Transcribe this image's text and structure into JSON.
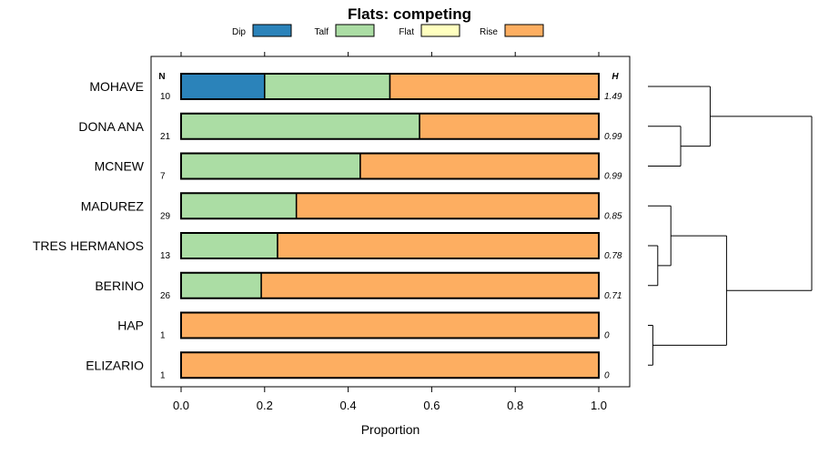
{
  "chart_data": {
    "type": "bar",
    "orientation": "horizontal",
    "stacked": true,
    "title": "Flats: competing",
    "xlabel": "Proportion",
    "ylabel": "",
    "xlim": [
      0,
      1
    ],
    "x_ticks": [
      "0.0",
      "0.2",
      "0.4",
      "0.6",
      "0.8",
      "1.0"
    ],
    "categories": [
      "MOHAVE",
      "DONA ANA",
      "MCNEW",
      "MADUREZ",
      "TRES HERMANOS",
      "BERINO",
      "HAP",
      "ELIZARIO"
    ],
    "n_header": "N",
    "h_header": "H",
    "n_values": [
      "10",
      "21",
      "7",
      "29",
      "13",
      "26",
      "1",
      "1"
    ],
    "h_values": [
      "1.49",
      "0.99",
      "0.99",
      "0.85",
      "0.78",
      "0.71",
      "0",
      "0"
    ],
    "series": [
      {
        "name": "Dip",
        "color": "#2b83ba",
        "values": [
          0.2,
          0,
          0,
          0,
          0,
          0,
          0,
          0
        ]
      },
      {
        "name": "Talf",
        "color": "#abdda4",
        "values": [
          0.3,
          0.571,
          0.429,
          0.276,
          0.231,
          0.192,
          0,
          0
        ]
      },
      {
        "name": "Flat",
        "color": "#ffffbf",
        "values": [
          0,
          0,
          0,
          0,
          0,
          0,
          0,
          0
        ]
      },
      {
        "name": "Rise",
        "color": "#fdae61",
        "values": [
          0.5,
          0.429,
          0.571,
          0.724,
          0.769,
          0.808,
          1,
          1
        ]
      }
    ],
    "dendrogram": {
      "leaves": [
        "MOHAVE",
        "DONA ANA",
        "MCNEW",
        "MADUREZ",
        "TRES HERMANOS",
        "BERINO",
        "HAP",
        "ELIZARIO"
      ],
      "merges": [
        {
          "left": "DONA ANA",
          "right": "MCNEW",
          "height": 0.2
        },
        {
          "left": "MOHAVE",
          "right": "DONA ANA+MCNEW",
          "height": 0.38
        },
        {
          "left": "TRES HERMANOS",
          "right": "BERINO",
          "height": 0.06
        },
        {
          "left": "MADUREZ",
          "right": "TRES HERMANOS+BERINO",
          "height": 0.14
        },
        {
          "left": "HAP",
          "right": "ELIZARIO",
          "height": 0.03
        },
        {
          "left": "MADUREZ+TRES HERMANOS+BERINO",
          "right": "HAP+ELIZARIO",
          "height": 0.48
        },
        {
          "left": "MOHAVE+DONA ANA+MCNEW",
          "right": "MADUREZ+TRES HERMANOS+BERINO+HAP+ELIZARIO",
          "height": 1.0
        }
      ]
    }
  }
}
